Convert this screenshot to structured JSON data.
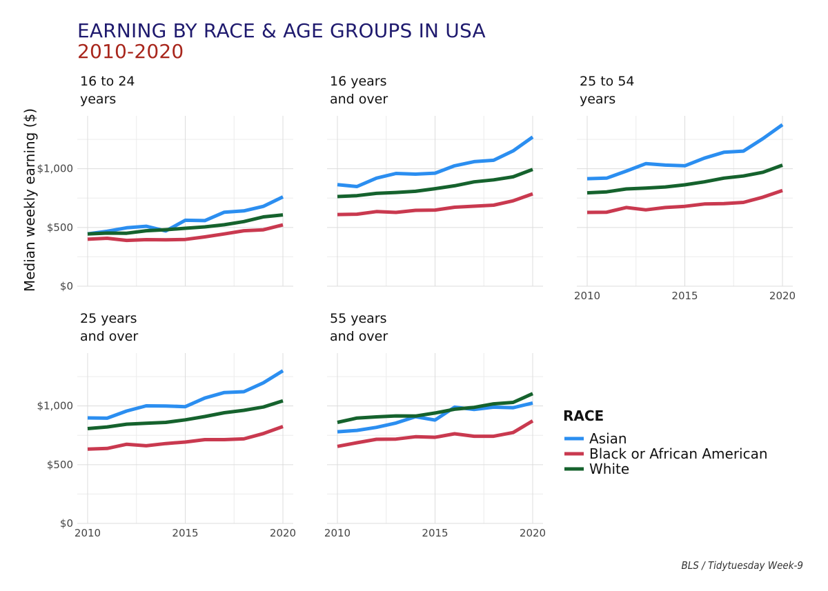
{
  "title_line1": "EARNING BY RACE & AGE GROUPS IN USA",
  "title_line2": "2010-2020",
  "caption": "BLS / Tidytuesday Week-9",
  "colors": {
    "Asian": "#2b8ef0",
    "Black or African American": "#c9394f",
    "White": "#15622d",
    "title": "#1f1a6e",
    "subtitle": "#a8261c"
  },
  "chart_data": {
    "type": "line",
    "ylabel": "Median weekly earning ($)",
    "xlabel": "",
    "x": [
      2010,
      2011,
      2012,
      2013,
      2014,
      2015,
      2016,
      2017,
      2018,
      2019,
      2020
    ],
    "xticks": [
      "2010",
      "2015",
      "2020"
    ],
    "yticks": [
      "$0",
      "$500",
      "$1,000"
    ],
    "ylim": [
      0,
      1450
    ],
    "xlim": [
      2010,
      2020
    ],
    "grid": true,
    "legend": {
      "title": "RACE",
      "placement": "bottom-right",
      "entries": [
        "Asian",
        "Black or African American",
        "White"
      ]
    },
    "panels": [
      {
        "title": [
          "16 to 24",
          "years"
        ],
        "series": [
          {
            "name": "Asian",
            "values": [
              445,
              468,
              497,
              510,
              470,
              561,
              558,
              630,
              641,
              680,
              760
            ]
          },
          {
            "name": "Black or African American",
            "values": [
              400,
              408,
              390,
              396,
              395,
              398,
              420,
              445,
              472,
              480,
              522
            ]
          },
          {
            "name": "White",
            "values": [
              445,
              452,
              451,
              472,
              481,
              493,
              505,
              523,
              550,
              590,
              607
            ]
          }
        ]
      },
      {
        "title": [
          "16 years",
          "and over"
        ],
        "series": [
          {
            "name": "Asian",
            "values": [
              865,
              848,
              920,
              960,
              954,
              962,
              1025,
              1060,
              1072,
              1152,
              1270
            ]
          },
          {
            "name": "Black or African American",
            "values": [
              610,
              613,
              635,
              628,
              646,
              648,
              672,
              681,
              690,
              727,
              786
            ]
          },
          {
            "name": "White",
            "values": [
              763,
              771,
              790,
              798,
              808,
              830,
              855,
              888,
              905,
              931,
              994
            ]
          }
        ]
      },
      {
        "title": [
          "25 to 54",
          "years"
        ],
        "series": [
          {
            "name": "Asian",
            "values": [
              915,
              920,
              980,
              1043,
              1031,
              1025,
              1090,
              1140,
              1150,
              1256,
              1375
            ]
          },
          {
            "name": "Black or African American",
            "values": [
              628,
              630,
              670,
              650,
              670,
              680,
              700,
              703,
              713,
              758,
              815
            ]
          },
          {
            "name": "White",
            "values": [
              795,
              803,
              828,
              835,
              845,
              863,
              888,
              920,
              938,
              970,
              1030
            ]
          }
        ]
      },
      {
        "title": [
          "25 years",
          "and over"
        ],
        "series": [
          {
            "name": "Asian",
            "values": [
              898,
              896,
              957,
              1001,
              1000,
              994,
              1067,
              1114,
              1121,
              1197,
              1300
            ]
          },
          {
            "name": "Black or African American",
            "values": [
              632,
              638,
              674,
              661,
              680,
              693,
              713,
              713,
              720,
              765,
              825
            ]
          },
          {
            "name": "White",
            "values": [
              807,
              821,
              845,
              853,
              860,
              882,
              910,
              942,
              963,
              991,
              1044
            ]
          }
        ]
      },
      {
        "title": [
          "55 years",
          "and over"
        ],
        "series": [
          {
            "name": "Asian",
            "values": [
              780,
              792,
              818,
              855,
              908,
              880,
              990,
              970,
              990,
              985,
              1025
            ]
          },
          {
            "name": "Black or African American",
            "values": [
              656,
              687,
              716,
              718,
              738,
              733,
              763,
              742,
              742,
              774,
              873
            ]
          },
          {
            "name": "White",
            "values": [
              860,
              897,
              907,
              915,
              914,
              940,
              972,
              988,
              1018,
              1030,
              1105
            ]
          }
        ]
      }
    ]
  }
}
